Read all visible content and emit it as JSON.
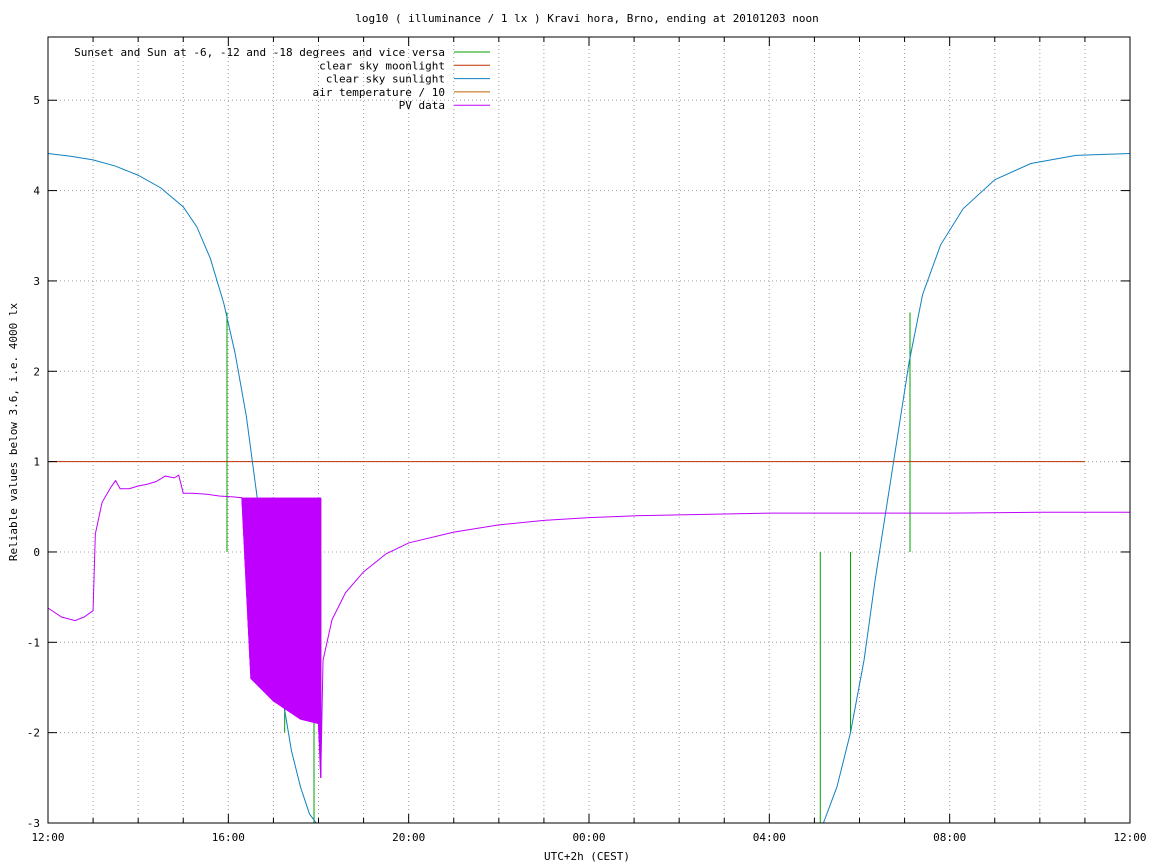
{
  "chart_data": {
    "type": "line",
    "title": "log10 ( illuminance / 1 lx ) Kravi hora, Brno, ending at 20101203 noon",
    "xlabel": "UTC+2h (CEST)",
    "ylabel": "Reliable values below 3.6, i.e. 4000 lx",
    "x_unit": "hours since 12:00",
    "xlim": [
      0,
      24
    ],
    "ylim": [
      -3,
      5.7
    ],
    "x_ticks": [
      {
        "value": 0,
        "label": "12:00"
      },
      {
        "value": 4,
        "label": "16:00"
      },
      {
        "value": 8,
        "label": "20:00"
      },
      {
        "value": 12,
        "label": "00:00"
      },
      {
        "value": 16,
        "label": "04:00"
      },
      {
        "value": 20,
        "label": "08:00"
      },
      {
        "value": 24,
        "label": "12:00"
      }
    ],
    "y_ticks": [
      {
        "value": -3,
        "label": "-3"
      },
      {
        "value": -2,
        "label": "-2"
      },
      {
        "value": -1,
        "label": "-1"
      },
      {
        "value": 0,
        "label": "0"
      },
      {
        "value": 1,
        "label": "1"
      },
      {
        "value": 2,
        "label": "2"
      },
      {
        "value": 3,
        "label": "3"
      },
      {
        "value": 4,
        "label": "4"
      },
      {
        "value": 5,
        "label": "5"
      }
    ],
    "grid": true,
    "legend_position": "top-left",
    "series": [
      {
        "name": "Sunset and Sun at -6, -12 and -18 degrees and vice versa",
        "color": "#00a000",
        "style": "impulses",
        "points": [
          {
            "x": 3.97,
            "y": 2.65
          },
          {
            "x": 5.25,
            "y": -2.0
          },
          {
            "x": 5.9,
            "y": -3.0
          },
          {
            "x": 6.05,
            "y": -2.0
          },
          {
            "x": 17.13,
            "y": -3.0
          },
          {
            "x": 17.8,
            "y": -2.0
          },
          {
            "x": 18.45,
            "y": 0.0
          },
          {
            "x": 19.12,
            "y": 2.65
          }
        ]
      },
      {
        "name": "clear sky moonlight",
        "color": "#c03000",
        "style": "line",
        "points": [
          {
            "x": 0.0,
            "y": 1.0
          },
          {
            "x": 23.0,
            "y": 1.0
          }
        ]
      },
      {
        "name": "clear sky sunlight",
        "color": "#1080c0",
        "style": "line",
        "points": [
          {
            "x": 0.0,
            "y": 4.41
          },
          {
            "x": 0.5,
            "y": 4.38
          },
          {
            "x": 1.0,
            "y": 4.34
          },
          {
            "x": 1.5,
            "y": 4.27
          },
          {
            "x": 2.0,
            "y": 4.17
          },
          {
            "x": 2.5,
            "y": 4.03
          },
          {
            "x": 3.0,
            "y": 3.82
          },
          {
            "x": 3.3,
            "y": 3.6
          },
          {
            "x": 3.6,
            "y": 3.25
          },
          {
            "x": 3.9,
            "y": 2.75
          },
          {
            "x": 4.15,
            "y": 2.2
          },
          {
            "x": 4.4,
            "y": 1.5
          },
          {
            "x": 4.6,
            "y": 0.75
          },
          {
            "x": 4.8,
            "y": 0.0
          },
          {
            "x": 5.0,
            "y": -0.8
          },
          {
            "x": 5.2,
            "y": -1.6
          },
          {
            "x": 5.4,
            "y": -2.2
          },
          {
            "x": 5.6,
            "y": -2.6
          },
          {
            "x": 5.8,
            "y": -2.9
          },
          {
            "x": 5.95,
            "y": -3.0
          }
        ],
        "points_morning": [
          {
            "x": 17.2,
            "y": -3.0
          },
          {
            "x": 17.5,
            "y": -2.6
          },
          {
            "x": 17.8,
            "y": -2.0
          },
          {
            "x": 18.1,
            "y": -1.2
          },
          {
            "x": 18.35,
            "y": -0.3
          },
          {
            "x": 18.6,
            "y": 0.5
          },
          {
            "x": 18.85,
            "y": 1.3
          },
          {
            "x": 19.1,
            "y": 2.1
          },
          {
            "x": 19.4,
            "y": 2.85
          },
          {
            "x": 19.8,
            "y": 3.4
          },
          {
            "x": 20.3,
            "y": 3.8
          },
          {
            "x": 21.0,
            "y": 4.12
          },
          {
            "x": 21.8,
            "y": 4.3
          },
          {
            "x": 22.8,
            "y": 4.39
          },
          {
            "x": 24.0,
            "y": 4.41
          }
        ]
      },
      {
        "name": "air temperature / 10",
        "color": "#c06000",
        "style": "line",
        "points": []
      },
      {
        "name": "PV data",
        "color": "#c000ff",
        "style": "line",
        "points": [
          {
            "x": 0.0,
            "y": -0.62
          },
          {
            "x": 0.3,
            "y": -0.72
          },
          {
            "x": 0.6,
            "y": -0.76
          },
          {
            "x": 0.8,
            "y": -0.72
          },
          {
            "x": 1.0,
            "y": -0.65
          },
          {
            "x": 1.05,
            "y": 0.2
          },
          {
            "x": 1.2,
            "y": 0.55
          },
          {
            "x": 1.4,
            "y": 0.72
          },
          {
            "x": 1.5,
            "y": 0.79
          },
          {
            "x": 1.6,
            "y": 0.7
          },
          {
            "x": 1.8,
            "y": 0.7
          },
          {
            "x": 2.0,
            "y": 0.73
          },
          {
            "x": 2.2,
            "y": 0.75
          },
          {
            "x": 2.4,
            "y": 0.78
          },
          {
            "x": 2.6,
            "y": 0.84
          },
          {
            "x": 2.8,
            "y": 0.82
          },
          {
            "x": 2.9,
            "y": 0.85
          },
          {
            "x": 3.0,
            "y": 0.65
          },
          {
            "x": 3.2,
            "y": 0.65
          },
          {
            "x": 3.5,
            "y": 0.64
          },
          {
            "x": 3.8,
            "y": 0.62
          },
          {
            "x": 4.1,
            "y": 0.61
          },
          {
            "x": 4.3,
            "y": 0.6
          },
          {
            "x": 4.5,
            "y": -1.4
          },
          {
            "x": 4.8,
            "y": -1.55
          },
          {
            "x": 5.0,
            "y": -1.65
          },
          {
            "x": 5.3,
            "y": -1.75
          },
          {
            "x": 5.6,
            "y": -1.85
          },
          {
            "x": 6.0,
            "y": -1.9
          },
          {
            "x": 6.05,
            "y": -2.5
          },
          {
            "x": 6.1,
            "y": -1.2
          },
          {
            "x": 6.3,
            "y": -0.75
          },
          {
            "x": 6.6,
            "y": -0.45
          },
          {
            "x": 7.0,
            "y": -0.22
          },
          {
            "x": 7.5,
            "y": -0.02
          },
          {
            "x": 8.0,
            "y": 0.1
          },
          {
            "x": 9.0,
            "y": 0.22
          },
          {
            "x": 10.0,
            "y": 0.3
          },
          {
            "x": 11.0,
            "y": 0.35
          },
          {
            "x": 12.0,
            "y": 0.38
          },
          {
            "x": 13.0,
            "y": 0.4
          },
          {
            "x": 14.0,
            "y": 0.41
          },
          {
            "x": 16.0,
            "y": 0.43
          },
          {
            "x": 18.0,
            "y": 0.43
          },
          {
            "x": 20.0,
            "y": 0.43
          },
          {
            "x": 22.0,
            "y": 0.44
          },
          {
            "x": 24.0,
            "y": 0.44
          }
        ],
        "noisy_band": {
          "x_start": 4.2,
          "x_end": 6.05,
          "y_top": 0.6
        }
      }
    ]
  }
}
